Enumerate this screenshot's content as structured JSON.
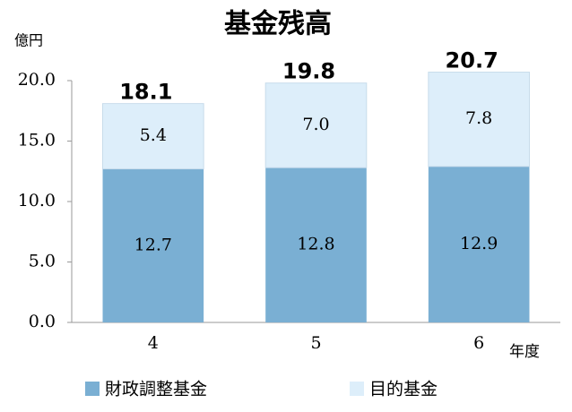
{
  "chart_data": {
    "type": "stacked_bar",
    "title": "基金残高",
    "y_label": "億円",
    "x_label": "年度",
    "categories": [
      "4",
      "5",
      "6"
    ],
    "series": [
      {
        "name": "財政調整基金",
        "color": "#7aafd3",
        "values": [
          12.7,
          12.8,
          12.9
        ],
        "value_labels": [
          "12.7",
          "12.8",
          "12.9"
        ]
      },
      {
        "name": "目的基金",
        "color": "#ddeefa",
        "values": [
          5.4,
          7.0,
          7.8
        ],
        "value_labels": [
          "5.4",
          "7.0",
          "7.8"
        ]
      }
    ],
    "totals": [
      18.1,
      19.8,
      20.7
    ],
    "ylim": [
      0,
      20
    ],
    "yticks": [
      {
        "value": 0,
        "label": "0.0"
      },
      {
        "value": 5,
        "label": "5.0"
      },
      {
        "value": 10,
        "label": "10.0"
      },
      {
        "value": 15,
        "label": "15.0"
      },
      {
        "value": 20,
        "label": "20.0"
      }
    ],
    "legend": "bottom"
  }
}
